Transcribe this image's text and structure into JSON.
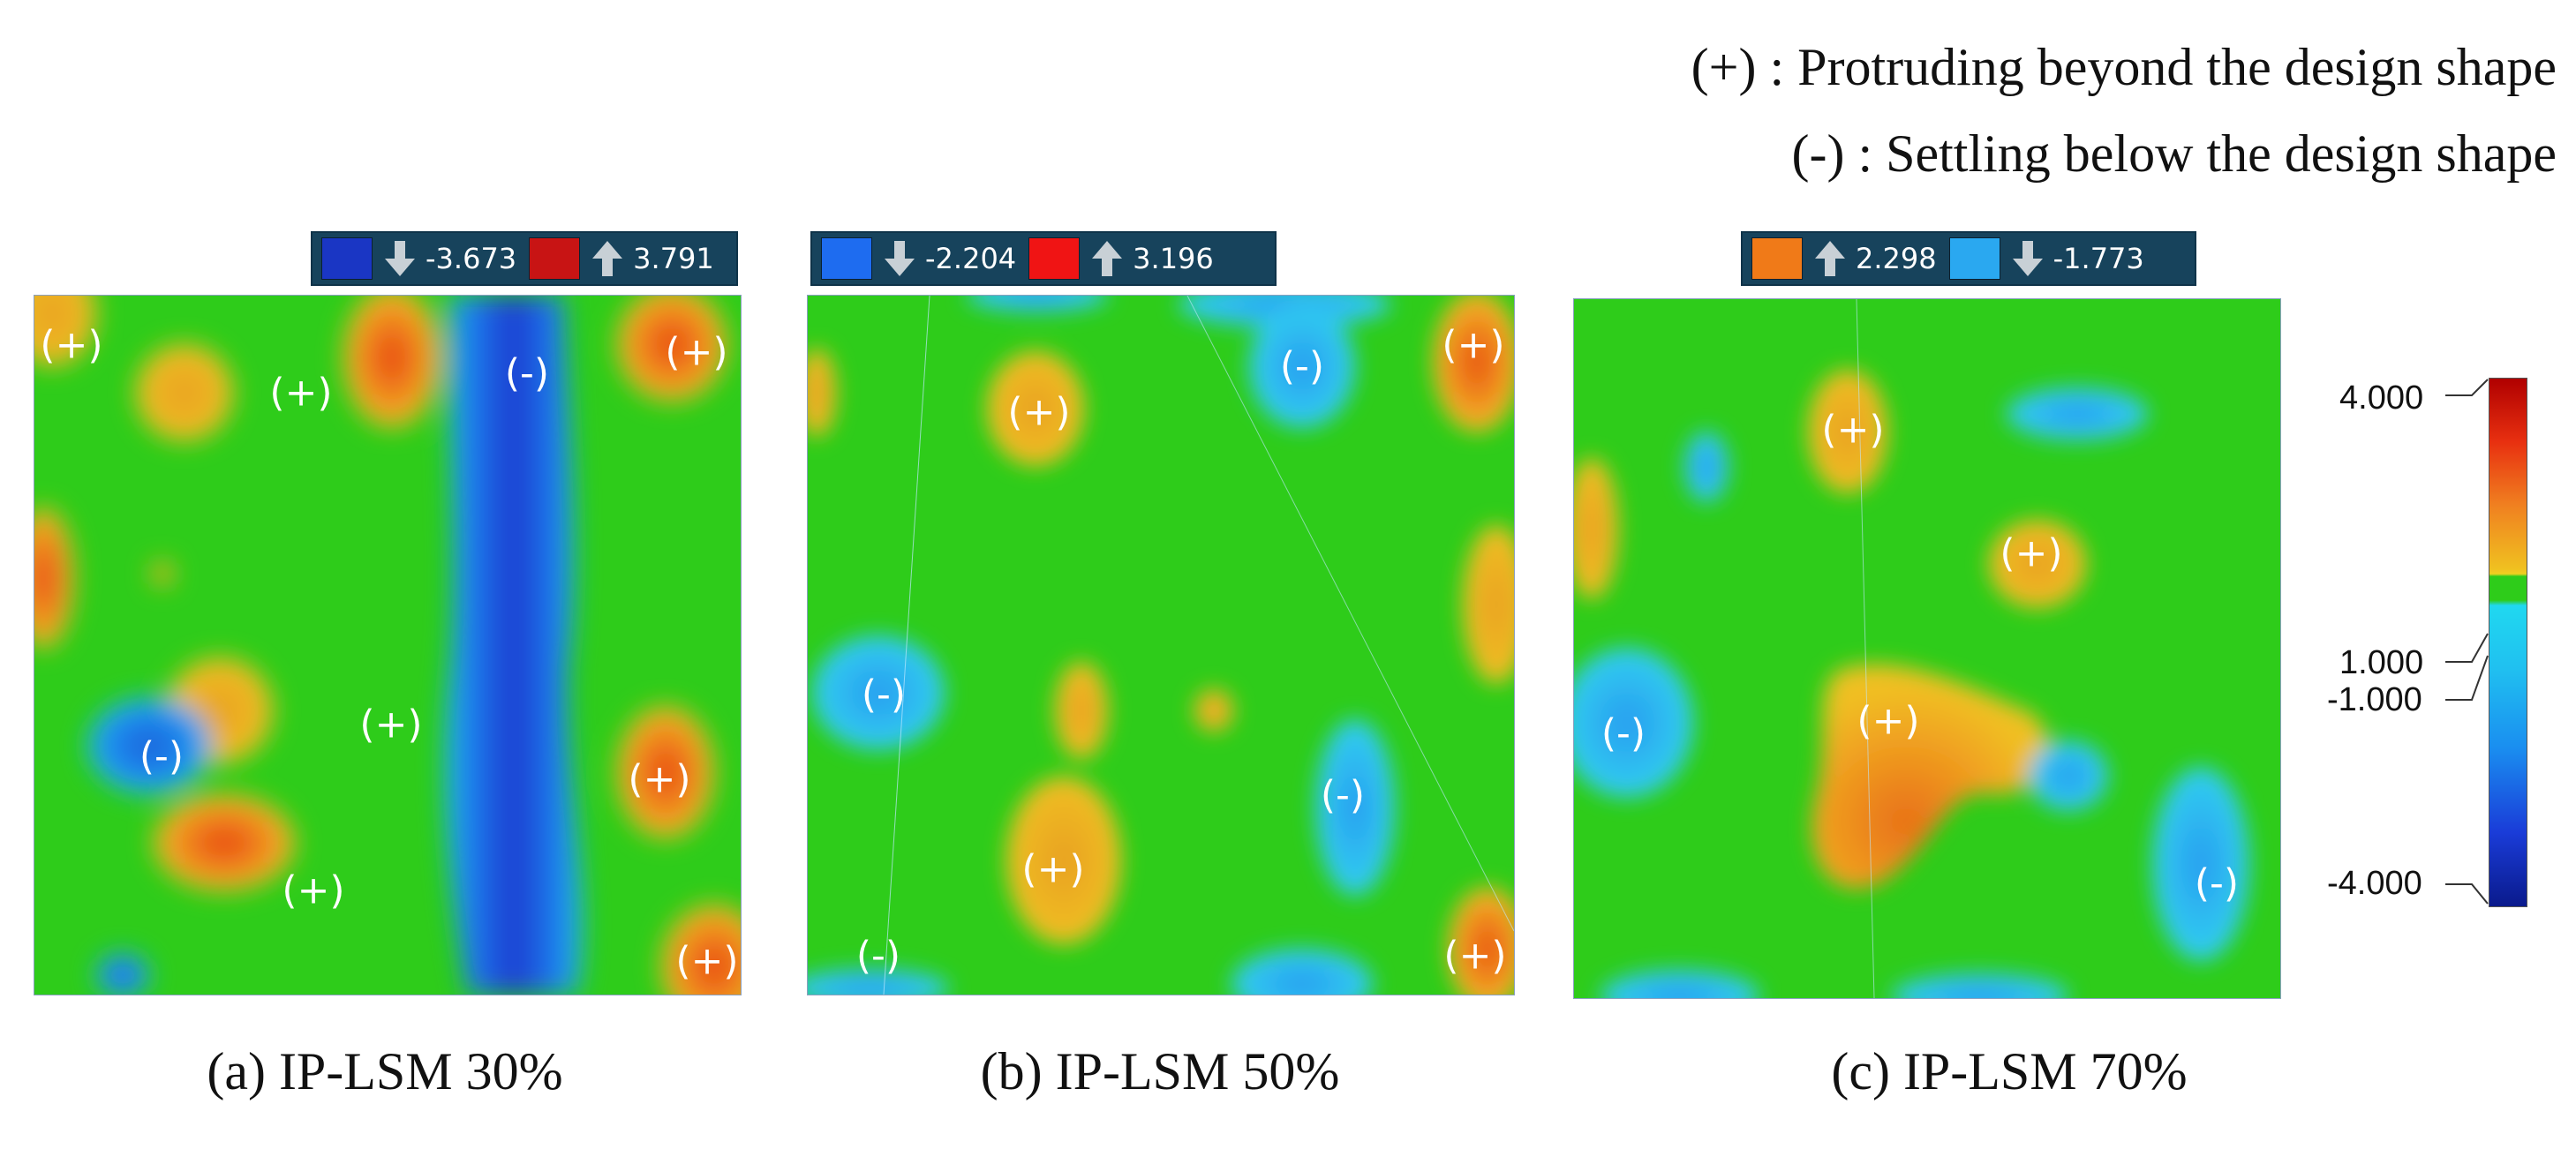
{
  "legend": {
    "plus": "(+) : Protruding beyond the design shape",
    "minus": "(-) : Settling below the design shape"
  },
  "panels": [
    {
      "caption": "(a) IP-LSM 30%",
      "min_label": {
        "value": "-3.673",
        "color": "#1a36c4"
      },
      "max_label": {
        "value": "3.791",
        "color": "#c81414"
      }
    },
    {
      "caption": "(b) IP-LSM 50%",
      "min_label": {
        "value": "-2.204",
        "color": "#1e6cf0"
      },
      "max_label": {
        "value": "3.196",
        "color": "#f01414"
      }
    },
    {
      "caption": "(c) IP-LSM 70%",
      "max_label": {
        "value": "2.298",
        "color": "#f07a18"
      },
      "min_label": {
        "value": "-1.773",
        "color": "#2aa8f0"
      }
    }
  ],
  "markers": {
    "plus": "(+)",
    "minus": "(-)"
  },
  "colorbar": {
    "ticks": [
      "4.000",
      "1.000",
      "-1.000",
      "-4.000"
    ],
    "colors": [
      "#b00000",
      "#e83010",
      "#f08020",
      "#f0c020",
      "#2ecc1a",
      "#20d8f0",
      "#1a8ef0",
      "#1a3cd8",
      "#0a1a8c"
    ]
  }
}
